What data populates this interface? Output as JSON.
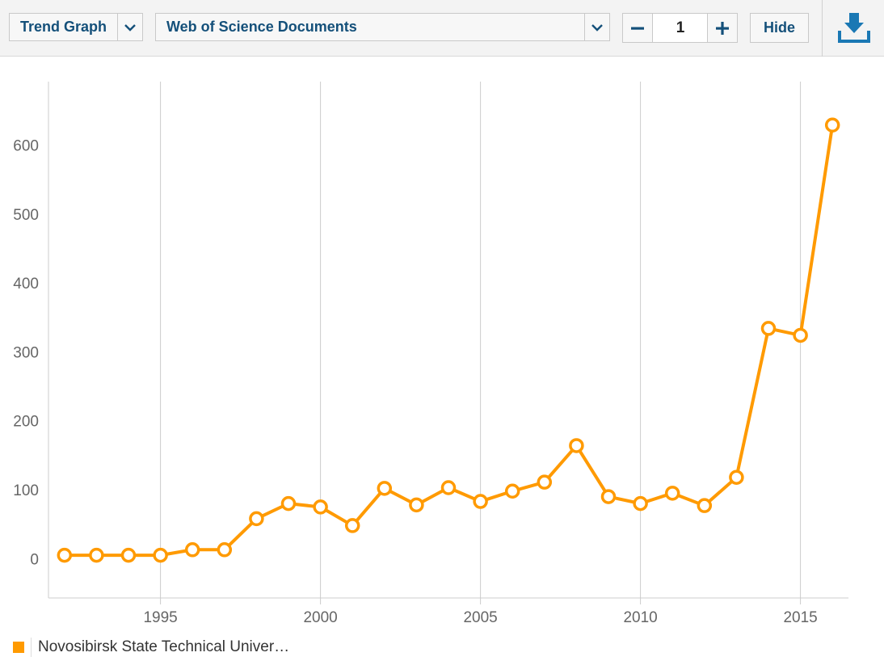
{
  "toolbar": {
    "view_select": "Trend Graph",
    "metric_select": "Web of Science Documents",
    "stepper_value": "1",
    "hide_label": "Hide"
  },
  "icons": {
    "dropdown": "chevron-down-icon",
    "decrement": "minus-icon",
    "increment": "plus-icon",
    "download": "download-icon"
  },
  "legend": {
    "label": "Novosibirsk State Technical Univer…",
    "color": "#ff9a00"
  },
  "chart_data": {
    "type": "line",
    "x": [
      1992,
      1993,
      1994,
      1995,
      1996,
      1997,
      1998,
      1999,
      2000,
      2001,
      2002,
      2003,
      2004,
      2005,
      2006,
      2007,
      2008,
      2009,
      2010,
      2011,
      2012,
      2013,
      2014,
      2015,
      2016
    ],
    "series": [
      {
        "name": "Novosibirsk State Technical Univer…",
        "color": "#ff9a00",
        "values": [
          5,
          5,
          5,
          5,
          13,
          13,
          58,
          80,
          75,
          48,
          102,
          78,
          103,
          83,
          98,
          111,
          164,
          90,
          80,
          95,
          77,
          118,
          334,
          324,
          629
        ]
      }
    ],
    "xticks": [
      1995,
      2000,
      2005,
      2010,
      2015
    ],
    "yticks": [
      0,
      100,
      200,
      300,
      400,
      500,
      600
    ],
    "xlim": [
      1991.5,
      2016.5
    ],
    "ylim": [
      -57,
      692
    ],
    "grid": "vertical",
    "legend_position": "bottom-left"
  }
}
